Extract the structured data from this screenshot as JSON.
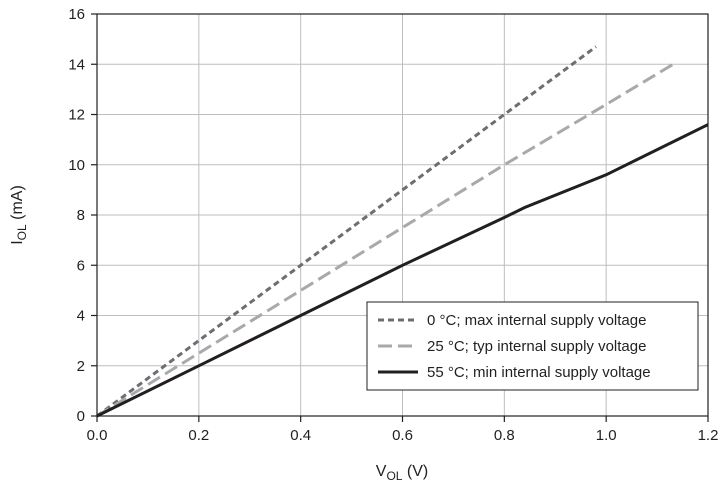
{
  "chart_data": {
    "type": "line",
    "xlabel": {
      "main": "V",
      "sub": "OL",
      "unit": " (V)"
    },
    "ylabel": {
      "main": "I",
      "sub": "OL",
      "unit": " (mA)"
    },
    "xlim": [
      0,
      1.2
    ],
    "ylim": [
      0,
      16
    ],
    "grid": true,
    "legend_position": "bottom-right",
    "x_ticks": [
      "0.0",
      "0.2",
      "0.4",
      "0.6",
      "0.8",
      "1.0",
      "1.2"
    ],
    "y_ticks": [
      "0",
      "2",
      "4",
      "6",
      "8",
      "10",
      "12",
      "14",
      "16"
    ],
    "series": [
      {
        "name": "0 °C; max internal supply voltage",
        "color": "#6d6e71",
        "dash": "short-dash",
        "x": [
          0,
          0.2,
          0.4,
          0.6,
          0.8,
          0.98
        ],
        "y": [
          0,
          3.0,
          6.0,
          9.0,
          12.0,
          14.7
        ]
      },
      {
        "name": "25 °C; typ internal supply voltage",
        "color": "#a7a9ac",
        "dash": "long-dash",
        "x": [
          0,
          0.2,
          0.4,
          0.6,
          0.8,
          1.0,
          1.14
        ],
        "y": [
          0,
          2.5,
          5.0,
          7.5,
          10.0,
          12.4,
          14.1
        ]
      },
      {
        "name": "55 °C; min internal supply voltage",
        "color": "#231f20",
        "dash": "solid",
        "x": [
          0,
          0.2,
          0.4,
          0.6,
          0.8,
          0.84,
          1.0,
          1.2
        ],
        "y": [
          0,
          2.0,
          4.0,
          6.0,
          7.9,
          8.3,
          9.6,
          11.6
        ]
      }
    ]
  }
}
